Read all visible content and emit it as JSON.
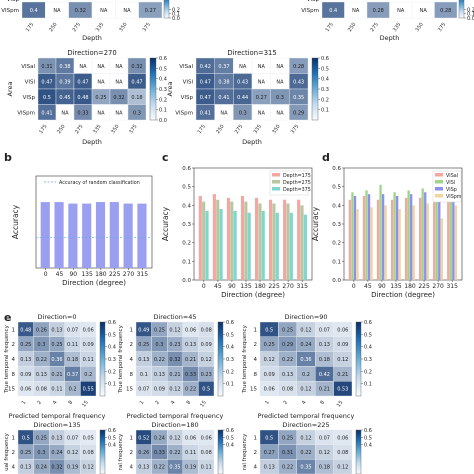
{
  "panel_labels": {
    "b": "b",
    "c": "c",
    "d": "d",
    "e": "e"
  },
  "colors": {
    "blue_low": "#f7fbff",
    "blue_high": "#08306b",
    "bar_b": "#9b9ff0",
    "depth175": "#f4a6a0",
    "depth275": "#b6c7a2",
    "depth375": "#7fd6cf",
    "visal": "#f4a6a0",
    "visl": "#9fd48c",
    "visp": "#8f8ff0",
    "vispm": "#f2d59c",
    "dashed": "#6fa8dc"
  },
  "chart_data": [
    {
      "type": "heatmap",
      "id": "a-partial-left",
      "rows": [
        "VISpm"
      ],
      "cols": [
        "175",
        "250",
        "275",
        "335",
        "350",
        "375"
      ],
      "matrix": [
        [
          0.4,
          null,
          0.32,
          null,
          null,
          0.27
        ]
      ],
      "cell_labels": [
        [
          "0.4",
          "NA",
          "0.32",
          "NA",
          "NA",
          "0.27"
        ]
      ],
      "cropped_top_row_label": "VISp",
      "xlabel": "Depth",
      "clim": [
        0,
        0.6
      ],
      "colorbar_ticks": [
        "0.2",
        "0.1",
        "0.0"
      ]
    },
    {
      "type": "heatmap",
      "id": "a-partial-right",
      "rows": [
        "VISpm"
      ],
      "cols": [
        "175",
        "250",
        "275",
        "335",
        "350",
        "375"
      ],
      "matrix": [
        [
          0.4,
          null,
          0.28,
          null,
          null,
          0.28
        ]
      ],
      "cell_labels": [
        [
          "0.4",
          "NA",
          "0.28",
          "NA",
          "NA",
          "0.28"
        ]
      ],
      "cropped_top_row_label": "VISp",
      "xlabel": "Depth",
      "clim": [
        0,
        0.6
      ],
      "colorbar_ticks": [
        "0.2",
        "0.1",
        "0.0"
      ]
    },
    {
      "type": "heatmap",
      "id": "a-270",
      "title": "Direction=270",
      "rows": [
        "VISal",
        "VISl",
        "VISp",
        "VISpm"
      ],
      "cols": [
        "175",
        "250",
        "275",
        "335",
        "350",
        "375"
      ],
      "matrix": [
        [
          0.31,
          0.38,
          null,
          null,
          null,
          0.32
        ],
        [
          0.47,
          0.39,
          0.47,
          null,
          null,
          0.47
        ],
        [
          0.5,
          0.45,
          0.48,
          0.25,
          0.32,
          0.18
        ],
        [
          0.41,
          null,
          0.33,
          null,
          null,
          0.3
        ]
      ],
      "cell_labels": [
        [
          "0.31",
          "0.38",
          "NA",
          "NA",
          "NA",
          "0.32"
        ],
        [
          "0.47",
          "0.39",
          "0.47",
          "NA",
          "NA",
          "0.47"
        ],
        [
          "0.5",
          "0.45",
          "0.48",
          "0.25",
          "0.32",
          "0.18"
        ],
        [
          "0.41",
          "NA",
          "0.33",
          "NA",
          "NA",
          "0.3"
        ]
      ],
      "xlabel": "Depth",
      "ylabel": "Area",
      "clim": [
        0,
        0.6
      ],
      "colorbar_ticks": [
        "0.6",
        "0.5",
        "0.4",
        "0.3",
        "0.2",
        "0.1",
        "0.0"
      ]
    },
    {
      "type": "heatmap",
      "id": "a-315",
      "title": "Direction=315",
      "rows": [
        "VISal",
        "VISl",
        "VISp",
        "VISpm"
      ],
      "cols": [
        "175",
        "250",
        "275",
        "335",
        "350",
        "375"
      ],
      "matrix": [
        [
          0.42,
          0.37,
          null,
          null,
          null,
          0.28
        ],
        [
          0.47,
          0.38,
          0.43,
          null,
          null,
          0.43
        ],
        [
          0.47,
          0.41,
          0.44,
          0.27,
          0.3,
          0.35
        ],
        [
          0.41,
          null,
          0.3,
          null,
          null,
          0.29
        ]
      ],
      "cell_labels": [
        [
          "0.42",
          "0.37",
          "NA",
          "NA",
          "NA",
          "0.28"
        ],
        [
          "0.47",
          "0.38",
          "0.43",
          "NA",
          "NA",
          "0.43"
        ],
        [
          "0.47",
          "0.41",
          "0.44",
          "0.27",
          "0.3",
          "0.35"
        ],
        [
          "0.41",
          "NA",
          "0.3",
          "NA",
          "NA",
          "0.29"
        ]
      ],
      "xlabel": "Depth",
      "ylabel": "Area",
      "clim": [
        0,
        0.6
      ],
      "colorbar_ticks": [
        "0.6",
        "0.5",
        "0.4",
        "0.3",
        "0.2",
        "0.1"
      ]
    },
    {
      "type": "bar",
      "id": "b",
      "categories": [
        "0",
        "45",
        "90",
        "135",
        "180",
        "225",
        "270",
        "315"
      ],
      "values": [
        0.43,
        0.43,
        0.42,
        0.42,
        0.43,
        0.43,
        0.42,
        0.42
      ],
      "xlabel": "Direction (degree)",
      "ylabel": "Accuracy",
      "legend": "Accuracy of random classification",
      "reference_line": 0.2,
      "ylim": [
        0,
        0.6
      ]
    },
    {
      "type": "bar",
      "id": "c",
      "categories": [
        "0",
        "45",
        "90",
        "135",
        "180",
        "225",
        "270",
        "315"
      ],
      "series": [
        {
          "name": "Depth=175",
          "values": [
            0.45,
            0.46,
            0.44,
            0.45,
            0.44,
            0.43,
            0.43,
            0.43
          ]
        },
        {
          "name": "Depth=275",
          "values": [
            0.42,
            0.43,
            0.42,
            0.42,
            0.41,
            0.41,
            0.41,
            0.4
          ]
        },
        {
          "name": "Depth=375",
          "values": [
            0.37,
            0.38,
            0.37,
            0.36,
            0.37,
            0.36,
            0.36,
            0.35
          ]
        }
      ],
      "yticks": [
        "0.0",
        "0.1",
        "0.2",
        "0.3",
        "0.4",
        "0.5",
        "0.6"
      ],
      "xlabel": "Direction (degree)",
      "ylabel": "Accuracy",
      "ylim": [
        0,
        0.6
      ]
    },
    {
      "type": "bar",
      "id": "d",
      "categories": [
        "0",
        "45",
        "90",
        "135",
        "180",
        "225",
        "270",
        "315"
      ],
      "series": [
        {
          "name": "VISal",
          "values": [
            0.43,
            0.45,
            0.43,
            0.43,
            0.44,
            0.44,
            0.46,
            0.44
          ]
        },
        {
          "name": "VISl",
          "values": [
            0.47,
            0.48,
            0.51,
            0.47,
            0.48,
            0.49,
            0.52,
            0.48
          ]
        },
        {
          "name": "VISp",
          "values": [
            0.45,
            0.46,
            0.46,
            0.45,
            0.46,
            0.47,
            0.48,
            0.46
          ]
        },
        {
          "name": "VISpm",
          "values": [
            0.38,
            0.39,
            0.4,
            0.38,
            0.4,
            0.41,
            0.33,
            0.4
          ]
        }
      ],
      "yticks": [
        "0.0",
        "0.1",
        "0.2",
        "0.3",
        "0.4",
        "0.5",
        "0.6"
      ],
      "xlabel": "Direction (degree)",
      "ylabel": "Accuracy",
      "ylim": [
        0,
        0.6
      ]
    },
    {
      "type": "heatmap",
      "id": "e-0",
      "title": "Direction=0",
      "rows": [
        "1",
        "2",
        "4",
        "8",
        "15"
      ],
      "cols": [
        "1",
        "2",
        "4",
        "8",
        "15"
      ],
      "matrix": [
        [
          0.48,
          0.26,
          0.13,
          0.07,
          0.06
        ],
        [
          0.25,
          0.3,
          0.25,
          0.11,
          0.09
        ],
        [
          0.13,
          0.22,
          0.36,
          0.18,
          0.11
        ],
        [
          0.09,
          0.13,
          0.21,
          0.37,
          0.2
        ],
        [
          0.06,
          0.08,
          0.11,
          0.2,
          0.55
        ]
      ],
      "cell_labels": [
        [
          "0.48",
          "0.26",
          "0.13",
          "0.07",
          "0.06"
        ],
        [
          "0.25",
          "0.3",
          "0.25",
          "0.11",
          "0.09"
        ],
        [
          "0.13",
          "0.22",
          "0.36",
          "0.18",
          "0.11"
        ],
        [
          "0.09",
          "0.13",
          "0.21",
          "0.37",
          "0.2"
        ],
        [
          "0.06",
          "0.08",
          "0.11",
          "0.2",
          "0.55"
        ]
      ],
      "xlabel": "Predicted temporal frequency",
      "ylabel": "True temporal frequency",
      "clim": [
        0,
        0.6
      ],
      "colorbar_ticks": [
        "0.6",
        "0.5",
        "0.4",
        "0.3",
        "0.2",
        "0.1"
      ]
    },
    {
      "type": "heatmap",
      "id": "e-45",
      "title": "Direction=45",
      "rows": [
        "1",
        "2",
        "4",
        "8",
        "15"
      ],
      "cols": [
        "1",
        "2",
        "4",
        "8",
        "15"
      ],
      "matrix": [
        [
          0.49,
          0.25,
          0.12,
          0.06,
          0.08
        ],
        [
          0.25,
          0.3,
          0.23,
          0.13,
          0.09
        ],
        [
          0.13,
          0.22,
          0.32,
          0.21,
          0.12
        ],
        [
          0.1,
          0.13,
          0.21,
          0.33,
          0.23
        ],
        [
          0.07,
          0.09,
          0.12,
          0.22,
          0.5
        ]
      ],
      "cell_labels": [
        [
          "0.49",
          "0.25",
          "0.12",
          "0.06",
          "0.08"
        ],
        [
          "0.25",
          "0.3",
          "0.23",
          "0.13",
          "0.09"
        ],
        [
          "0.13",
          "0.22",
          "0.32",
          "0.21",
          "0.12"
        ],
        [
          "0.1",
          "0.13",
          "0.21",
          "0.33",
          "0.23"
        ],
        [
          "0.07",
          "0.09",
          "0.12",
          "0.22",
          "0.5"
        ]
      ],
      "xlabel": "Predicted temporal frequency",
      "ylabel": "True temporal frequency",
      "clim": [
        0,
        0.6
      ],
      "colorbar_ticks": [
        "0.6",
        "0.5",
        "0.4",
        "0.3",
        "0.2",
        "0.1"
      ]
    },
    {
      "type": "heatmap",
      "id": "e-90",
      "title": "Direction=90",
      "rows": [
        "1",
        "2",
        "4",
        "8",
        "15"
      ],
      "cols": [
        "1",
        "2",
        "4",
        "8",
        "15"
      ],
      "matrix": [
        [
          0.5,
          0.25,
          0.12,
          0.07,
          0.06
        ],
        [
          0.25,
          0.29,
          0.24,
          0.13,
          0.09
        ],
        [
          0.12,
          0.22,
          0.36,
          0.18,
          0.12
        ],
        [
          0.09,
          0.13,
          0.2,
          0.42,
          0.21
        ],
        [
          0.06,
          0.08,
          0.12,
          0.21,
          0.53
        ]
      ],
      "cell_labels": [
        [
          "0.5",
          "0.25",
          "0.12",
          "0.07",
          "0.06"
        ],
        [
          "0.25",
          "0.29",
          "0.24",
          "0.13",
          "0.09"
        ],
        [
          "0.12",
          "0.22",
          "0.36",
          "0.18",
          "0.12"
        ],
        [
          "0.09",
          "0.13",
          "0.2",
          "0.42",
          "0.21"
        ],
        [
          "0.06",
          "0.08",
          "0.12",
          "0.21",
          "0.53"
        ]
      ],
      "xlabel": "Predicted temporal frequency",
      "ylabel": "True temporal frequency",
      "clim": [
        0,
        0.6
      ],
      "colorbar_ticks": [
        "0.6",
        "0.5",
        "0.4",
        "0.3",
        "0.2",
        "0.1"
      ]
    },
    {
      "type": "heatmap",
      "id": "e-135",
      "title": "Direction=135",
      "rows": [
        "1",
        "2",
        "4"
      ],
      "cols": [
        "1",
        "2",
        "4",
        "8",
        "15"
      ],
      "matrix": [
        [
          0.5,
          0.25,
          0.13,
          0.07,
          0.05
        ],
        [
          0.25,
          0.3,
          0.24,
          0.12,
          0.08
        ],
        [
          0.13,
          0.24,
          0.32,
          0.19,
          0.12
        ]
      ],
      "cell_labels": [
        [
          "0.5",
          "0.25",
          "0.13",
          "0.07",
          "0.05"
        ],
        [
          "0.25",
          "0.3",
          "0.24",
          "0.12",
          "0.08"
        ],
        [
          "0.13",
          "0.24",
          "0.32",
          "0.19",
          "0.12"
        ]
      ],
      "ylabel": "ual frequency",
      "clim": [
        0,
        0.6
      ],
      "colorbar_ticks": [
        "0.6",
        "0.5",
        "0.4"
      ]
    },
    {
      "type": "heatmap",
      "id": "e-180",
      "title": "Direction=180",
      "rows": [
        "1",
        "2",
        "4"
      ],
      "cols": [
        "1",
        "2",
        "4",
        "8",
        "15"
      ],
      "matrix": [
        [
          0.52,
          0.24,
          0.12,
          0.06,
          0.06
        ],
        [
          0.26,
          0.33,
          0.22,
          0.11,
          0.08
        ],
        [
          0.13,
          0.22,
          0.35,
          0.19,
          0.11
        ]
      ],
      "cell_labels": [
        [
          "0.52",
          "0.24",
          "0.12",
          "0.06",
          "0.06"
        ],
        [
          "0.26",
          "0.33",
          "0.22",
          "0.11",
          "0.08"
        ],
        [
          "0.13",
          "0.22",
          "0.35",
          "0.19",
          "0.11"
        ]
      ],
      "ylabel": "ral frequency",
      "clim": [
        0,
        0.6
      ],
      "colorbar_ticks": [
        "0.6",
        "0.5",
        "0.4"
      ]
    },
    {
      "type": "heatmap",
      "id": "e-225",
      "title": "Direction=225",
      "rows": [
        "1",
        "2",
        "4"
      ],
      "cols": [
        "1",
        "2",
        "4",
        "8",
        "15"
      ],
      "matrix": [
        [
          0.5,
          0.25,
          0.12,
          0.07,
          0.06
        ],
        [
          0.27,
          0.31,
          0.22,
          0.12,
          0.08
        ],
        [
          0.13,
          0.22,
          0.35,
          0.18,
          0.12
        ]
      ],
      "cell_labels": [
        [
          "0.5",
          "0.25",
          "0.12",
          "0.07",
          "0.06"
        ],
        [
          "0.27",
          "0.31",
          "0.22",
          "0.12",
          "0.08"
        ],
        [
          "0.13",
          "0.22",
          "0.35",
          "0.18",
          "0.12"
        ]
      ],
      "ylabel": "ral frequency",
      "clim": [
        0,
        0.6
      ],
      "colorbar_ticks": [
        "0.6",
        "0.5",
        "0.4"
      ]
    }
  ]
}
